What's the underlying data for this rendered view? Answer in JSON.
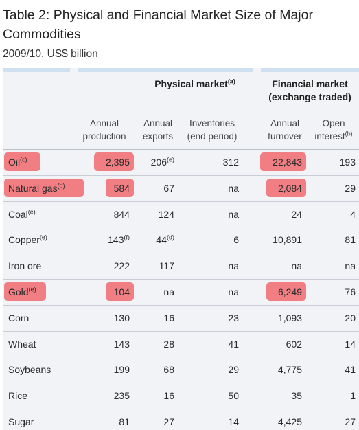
{
  "title": "Table 2: Physical and Financial Market Size of Major Commodities",
  "subtitle": "2009/10, US$ billion",
  "groups": {
    "physical": {
      "label": "Physical market",
      "note": "(a)"
    },
    "financial": {
      "label_line1": "Financial market",
      "label_line2": "(exchange traded)"
    }
  },
  "columns": {
    "annual_production": {
      "line1": "Annual",
      "line2": "production"
    },
    "annual_exports": {
      "line1": "Annual",
      "line2": "exports"
    },
    "inventories": {
      "line1": "Inventories",
      "line2": "(end period)"
    },
    "annual_turnover": {
      "line1": "Annual",
      "line2": "turnover"
    },
    "open_interest": {
      "line1": "Open",
      "line2": "interest",
      "note": "(b)"
    }
  },
  "rows": [
    {
      "name": "Oil",
      "note": "(c)",
      "production": "2,395",
      "production_note": "",
      "exports": "206",
      "exports_note": "(e)",
      "inventories": "312",
      "turnover": "22,843",
      "open_interest": "193",
      "highlight": true
    },
    {
      "name": "Natural gas",
      "note": "(d)",
      "production": "584",
      "production_note": "",
      "exports": "67",
      "exports_note": "",
      "inventories": "na",
      "turnover": "2,084",
      "open_interest": "29",
      "highlight": true
    },
    {
      "name": "Coal",
      "note": "(e)",
      "production": "844",
      "production_note": "",
      "exports": "124",
      "exports_note": "",
      "inventories": "na",
      "turnover": "24",
      "open_interest": "4",
      "highlight": false
    },
    {
      "name": "Copper",
      "note": "(e)",
      "production": "143",
      "production_note": "(f)",
      "exports": "44",
      "exports_note": "(d)",
      "inventories": "6",
      "turnover": "10,891",
      "open_interest": "81",
      "highlight": false
    },
    {
      "name": "Iron ore",
      "note": "",
      "production": "222",
      "production_note": "",
      "exports": "117",
      "exports_note": "",
      "inventories": "na",
      "turnover": "na",
      "open_interest": "na",
      "highlight": false
    },
    {
      "name": "Gold",
      "note": "(e)",
      "production": "104",
      "production_note": "",
      "exports": "na",
      "exports_note": "",
      "inventories": "na",
      "turnover": "6,249",
      "open_interest": "76",
      "highlight": true
    },
    {
      "name": "Corn",
      "note": "",
      "production": "130",
      "production_note": "",
      "exports": "16",
      "exports_note": "",
      "inventories": "23",
      "turnover": "1,093",
      "open_interest": "20",
      "highlight": false
    },
    {
      "name": "Wheat",
      "note": "",
      "production": "143",
      "production_note": "",
      "exports": "28",
      "exports_note": "",
      "inventories": "41",
      "turnover": "602",
      "open_interest": "14",
      "highlight": false
    },
    {
      "name": "Soybeans",
      "note": "",
      "production": "199",
      "production_note": "",
      "exports": "68",
      "exports_note": "",
      "inventories": "29",
      "turnover": "4,775",
      "open_interest": "41",
      "highlight": false
    },
    {
      "name": "Rice",
      "note": "",
      "production": "235",
      "production_note": "",
      "exports": "16",
      "exports_note": "",
      "inventories": "50",
      "turnover": "35",
      "open_interest": "1",
      "highlight": false
    },
    {
      "name": "Sugar",
      "note": "",
      "production": "81",
      "production_note": "",
      "exports": "27",
      "exports_note": "",
      "inventories": "14",
      "turnover": "4,425",
      "open_interest": "27",
      "highlight": false
    }
  ],
  "colors": {
    "highlight": "#f0686f",
    "table_bg": "#f1f3f7",
    "band": "#cfe0f0"
  }
}
